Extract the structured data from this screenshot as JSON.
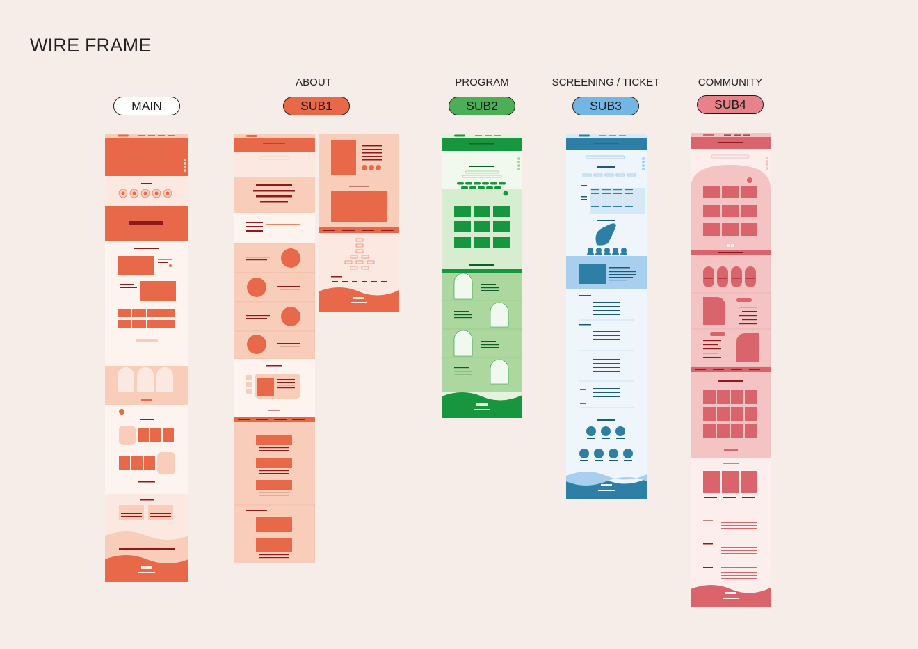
{
  "page": {
    "title": "WIRE FRAME"
  },
  "sections": [
    {
      "id": "main",
      "caption": "",
      "label": "MAIN",
      "color": "#ffffff"
    },
    {
      "id": "sub1",
      "caption": "ABOUT",
      "label": "SUB1",
      "color": "#e8694a"
    },
    {
      "id": "sub2",
      "caption": "PROGRAM",
      "label": "SUB2",
      "color": "#4cae56"
    },
    {
      "id": "sub3",
      "caption": "SCREENING / TICKET",
      "label": "SUB3",
      "color": "#74b6e3"
    },
    {
      "id": "sub4",
      "caption": "COMMUNITY",
      "label": "SUB4",
      "color": "#e8828a"
    }
  ],
  "palette": {
    "orange": "#e8694a",
    "orange_light": "#f8cdb9",
    "orange_pale": "#fbe9e1",
    "dark_red": "#8e1a1a",
    "green": "#18953f",
    "green_light": "#acd89f",
    "green_pale": "#e4f2df",
    "blue": "#2d7fa6",
    "blue_light": "#a9cfee",
    "blue_pale": "#eef6fb",
    "pink": "#d9646c",
    "pink_light": "#f4c3c4",
    "pink_pale": "#fbeeed"
  }
}
